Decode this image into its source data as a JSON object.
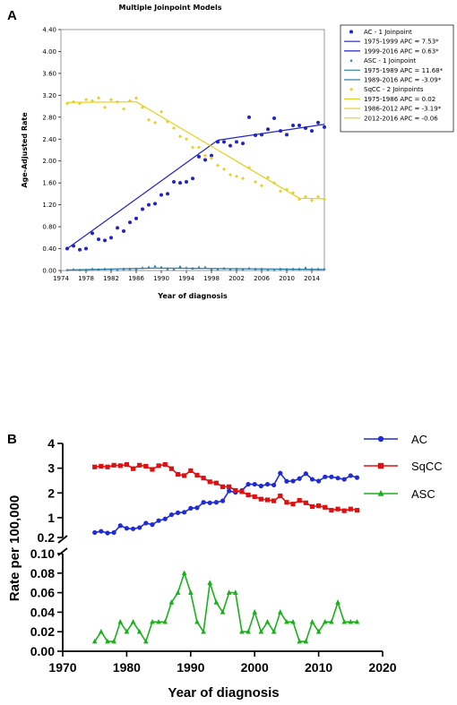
{
  "panel_a_letter": "A",
  "panel_b_letter": "B",
  "chart_data": [
    {
      "type": "scatter",
      "title": "Multiple Joinpoint Models",
      "xlabel": "Year of diagnosis",
      "ylabel": "Age-Adjusted Rate",
      "xlim": [
        1974,
        2016
      ],
      "ylim": [
        0,
        4.4
      ],
      "xticks": [
        1974,
        1978,
        1982,
        1986,
        1990,
        1994,
        1998,
        2002,
        2006,
        2010,
        2014
      ],
      "xtick_labels": [
        "1974",
        "1978",
        "1982",
        "1986",
        "1990",
        "1994",
        "1998",
        "2002",
        "2006",
        "2010",
        "2014"
      ],
      "yticks": [
        0,
        0.4,
        0.8,
        1.2,
        1.6,
        2.0,
        2.4,
        2.8,
        3.2,
        3.6,
        4.0,
        4.4
      ],
      "ytick_labels": [
        "0.00",
        "0.40",
        "0.80",
        "1.20",
        "1.60",
        "2.00",
        "2.40",
        "2.80",
        "3.20",
        "3.60",
        "4.00",
        "4.40"
      ],
      "legend_position": "right",
      "x": [
        1975,
        1976,
        1977,
        1978,
        1979,
        1980,
        1981,
        1982,
        1983,
        1984,
        1985,
        1986,
        1987,
        1988,
        1989,
        1990,
        1991,
        1992,
        1993,
        1994,
        1995,
        1996,
        1997,
        1998,
        1999,
        2000,
        2001,
        2002,
        2003,
        2004,
        2005,
        2006,
        2007,
        2008,
        2009,
        2010,
        2011,
        2012,
        2013,
        2014,
        2015,
        2016
      ],
      "series": [
        {
          "name": "AC - 1 Joinpoint",
          "color": "#2222cc",
          "marker": "circle",
          "values": [
            0.4,
            0.45,
            0.38,
            0.4,
            0.68,
            0.57,
            0.55,
            0.6,
            0.78,
            0.72,
            0.88,
            0.95,
            1.12,
            1.2,
            1.22,
            1.38,
            1.4,
            1.62,
            1.6,
            1.62,
            1.68,
            2.08,
            2.02,
            2.1,
            2.35,
            2.35,
            2.28,
            2.35,
            2.32,
            2.8,
            2.47,
            2.48,
            2.58,
            2.78,
            2.55,
            2.48,
            2.65,
            2.65,
            2.6,
            2.55,
            2.7,
            2.62
          ]
        },
        {
          "name": "ASC - 1 Joinpoint",
          "color": "#2e7fa6",
          "marker": "triangle",
          "values": [
            0.01,
            0.02,
            0.01,
            0.01,
            0.03,
            0.02,
            0.03,
            0.02,
            0.01,
            0.03,
            0.03,
            0.03,
            0.05,
            0.06,
            0.08,
            0.06,
            0.03,
            0.02,
            0.07,
            0.05,
            0.04,
            0.06,
            0.06,
            0.02,
            0.02,
            0.04,
            0.02,
            0.03,
            0.02,
            0.04,
            0.03,
            0.03,
            0.01,
            0.01,
            0.03,
            0.02,
            0.03,
            0.03,
            0.05,
            0.03,
            0.03,
            0.03
          ]
        },
        {
          "name": "SqCC - 2 Joinpoints",
          "color": "#e8d020",
          "marker": "diamond",
          "values": [
            3.05,
            3.08,
            3.05,
            3.12,
            3.1,
            3.15,
            2.98,
            3.12,
            3.08,
            2.95,
            3.1,
            3.15,
            2.98,
            2.75,
            2.7,
            2.9,
            2.72,
            2.6,
            2.45,
            2.4,
            2.25,
            2.25,
            2.1,
            2.05,
            1.92,
            1.85,
            1.75,
            1.72,
            1.68,
            1.88,
            1.62,
            1.55,
            1.7,
            1.6,
            1.45,
            1.48,
            1.42,
            1.3,
            1.35,
            1.28,
            1.35,
            1.3
          ]
        }
      ],
      "fit_lines": [
        {
          "label": "1975-1999 APC = 7.53*",
          "color": "#2222cc",
          "from": [
            1975,
            0.4
          ],
          "to": [
            1999,
            2.38
          ]
        },
        {
          "label": "1999-2016 APC = 0.63*",
          "color": "#2222cc",
          "from": [
            1999,
            2.38
          ],
          "to": [
            2016,
            2.67
          ]
        },
        {
          "label": "1975-1989 APC = 11.68*",
          "color": "#2e7fa6",
          "from": [
            1975,
            0.01
          ],
          "to": [
            1989,
            0.045
          ]
        },
        {
          "label": "1989-2016 APC = -3.09*",
          "color": "#2e7fa6",
          "from": [
            1989,
            0.045
          ],
          "to": [
            2016,
            0.02
          ]
        },
        {
          "label": "1975-1986 APC = 0.02",
          "color": "#e8d020",
          "from": [
            1975,
            3.07
          ],
          "to": [
            1986,
            3.08
          ]
        },
        {
          "label": "1986-2012 APC = -3.19*",
          "color": "#e8d020",
          "from": [
            1986,
            3.08
          ],
          "to": [
            2012,
            1.32
          ]
        },
        {
          "label": "2012-2016 APC = -0.06",
          "color": "#e8d020",
          "from": [
            2012,
            1.32
          ],
          "to": [
            2016,
            1.31
          ]
        }
      ]
    },
    {
      "type": "line",
      "xlabel": "Year of diagnosis",
      "ylabel": "Rate per 100,000",
      "xlim": [
        1970,
        2020
      ],
      "xticks": [
        1970,
        1980,
        1990,
        2000,
        2010,
        2020
      ],
      "xtick_labels": [
        "1970",
        "1980",
        "1990",
        "2000",
        "2010",
        "2020"
      ],
      "y_axis_broken": true,
      "upper_ylim": [
        0.2,
        4
      ],
      "upper_yticks": [
        0.2,
        1,
        2,
        3,
        4
      ],
      "upper_ytick_labels": [
        "0.2",
        "1",
        "2",
        "3",
        "4"
      ],
      "lower_ylim": [
        0,
        0.1
      ],
      "lower_yticks": [
        0,
        0.02,
        0.04,
        0.06,
        0.08,
        0.1
      ],
      "lower_ytick_labels": [
        "0.00",
        "0.02",
        "0.04",
        "0.06",
        "0.08",
        "0.10"
      ],
      "legend_position": "right",
      "x": [
        1975,
        1976,
        1977,
        1978,
        1979,
        1980,
        1981,
        1982,
        1983,
        1984,
        1985,
        1986,
        1987,
        1988,
        1989,
        1990,
        1991,
        1992,
        1993,
        1994,
        1995,
        1996,
        1997,
        1998,
        1999,
        2000,
        2001,
        2002,
        2003,
        2004,
        2005,
        2006,
        2007,
        2008,
        2009,
        2010,
        2011,
        2012,
        2013,
        2014,
        2015,
        2016
      ],
      "series": [
        {
          "name": "AC",
          "color": "#1f2bd4",
          "marker": "circle",
          "axis": "upper",
          "values": [
            0.4,
            0.45,
            0.38,
            0.4,
            0.68,
            0.57,
            0.55,
            0.6,
            0.78,
            0.72,
            0.88,
            0.95,
            1.12,
            1.2,
            1.22,
            1.38,
            1.4,
            1.62,
            1.6,
            1.62,
            1.68,
            2.08,
            2.02,
            2.1,
            2.35,
            2.35,
            2.28,
            2.35,
            2.32,
            2.8,
            2.47,
            2.48,
            2.58,
            2.78,
            2.55,
            2.48,
            2.65,
            2.65,
            2.6,
            2.55,
            2.7,
            2.62
          ]
        },
        {
          "name": "SqCC",
          "color": "#e01010",
          "marker": "square",
          "axis": "upper",
          "values": [
            3.05,
            3.08,
            3.05,
            3.12,
            3.1,
            3.15,
            2.98,
            3.12,
            3.08,
            2.95,
            3.1,
            3.15,
            2.98,
            2.75,
            2.7,
            2.9,
            2.72,
            2.6,
            2.45,
            2.4,
            2.25,
            2.25,
            2.1,
            2.05,
            1.92,
            1.85,
            1.75,
            1.72,
            1.68,
            1.88,
            1.62,
            1.55,
            1.7,
            1.6,
            1.45,
            1.48,
            1.42,
            1.3,
            1.35,
            1.28,
            1.35,
            1.3
          ]
        },
        {
          "name": "ASC",
          "color": "#1ab01a",
          "marker": "triangle",
          "axis": "lower",
          "values": [
            0.01,
            0.02,
            0.01,
            0.01,
            0.03,
            0.02,
            0.03,
            0.02,
            0.01,
            0.03,
            0.03,
            0.03,
            0.05,
            0.06,
            0.08,
            0.06,
            0.03,
            0.02,
            0.07,
            0.05,
            0.04,
            0.06,
            0.06,
            0.02,
            0.02,
            0.04,
            0.02,
            0.03,
            0.02,
            0.04,
            0.03,
            0.03,
            0.01,
            0.01,
            0.03,
            0.02,
            0.03,
            0.03,
            0.05,
            0.03,
            0.03,
            0.03
          ]
        }
      ]
    }
  ]
}
